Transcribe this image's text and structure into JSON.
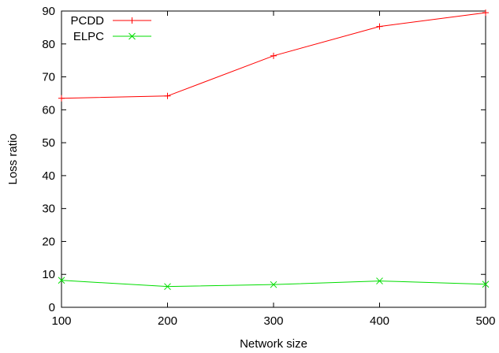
{
  "chart_data": {
    "type": "line",
    "title": "",
    "xlabel": "Network size",
    "ylabel": "Loss ratio",
    "x": [
      100,
      200,
      300,
      400,
      500
    ],
    "xlim": [
      100,
      500
    ],
    "ylim": [
      0,
      90
    ],
    "xticks": [
      "100",
      "200",
      "300",
      "400",
      "500"
    ],
    "yticks": [
      "0",
      "10",
      "20",
      "30",
      "40",
      "50",
      "60",
      "70",
      "80",
      "90"
    ],
    "grid": false,
    "legend_position": "top-left",
    "series": [
      {
        "name": "PCDD",
        "color": "#ff0000",
        "marker": "plus",
        "values": [
          63.5,
          64.2,
          76.4,
          85.3,
          89.5
        ]
      },
      {
        "name": "ELPC",
        "color": "#00dd00",
        "marker": "cross",
        "values": [
          8.2,
          6.3,
          6.9,
          8.0,
          7.0
        ]
      }
    ]
  }
}
